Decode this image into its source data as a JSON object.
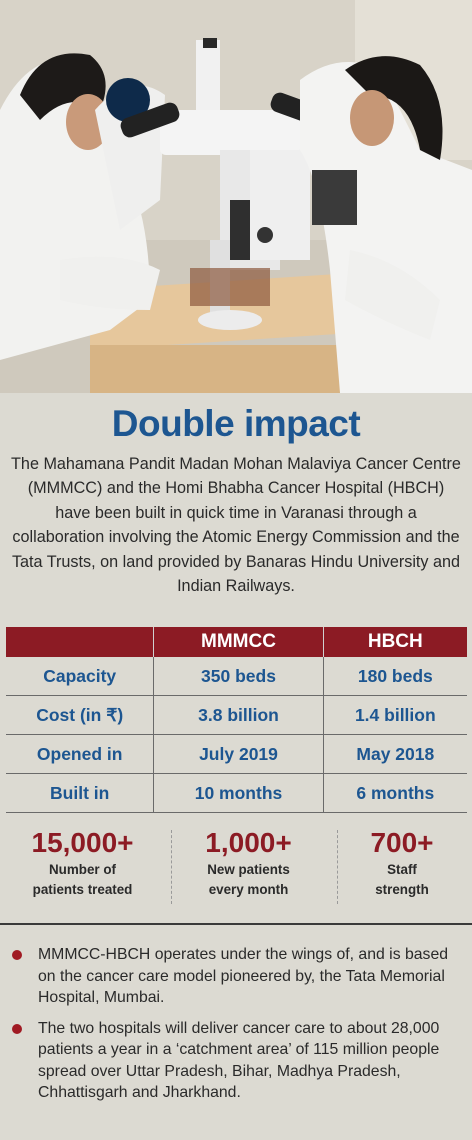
{
  "photo": {
    "alt": "Lab workers using a multi-headed microscope"
  },
  "title": "Double impact",
  "intro": "The Mahamana Pandit Madan Mohan Malaviya Cancer Centre (MMMCC) and the Homi Bhabha Cancer Hospital (HBCH) have been built in quick time in Varanasi through a collaboration involving the Atomic Energy Commission and the Tata Trusts, on land provided by Banaras Hindu University and Indian Railways.",
  "table": {
    "header": [
      "",
      "MMMCC",
      "HBCH"
    ],
    "rows": [
      [
        "Capacity",
        "350 beds",
        "180 beds"
      ],
      [
        "Cost (in ₹)",
        "3.8 billion",
        "1.4 billion"
      ],
      [
        "Opened in",
        "July 2019",
        "May 2018"
      ],
      [
        "Built in",
        "10 months",
        "6 months"
      ]
    ]
  },
  "stats": [
    {
      "number": "15,000+",
      "line1": "Number of",
      "line2": "patients treated"
    },
    {
      "number": "1,000+",
      "line1": "New patients",
      "line2": "every month"
    },
    {
      "number": "700+",
      "line1": "Staff",
      "line2": "strength"
    }
  ],
  "bullets": [
    "MMMCC-HBCH operates under the wings of, and is based on the cancer care model pioneered by, the Tata Memorial Hospital, Mumbai.",
    "The two hospitals will deliver cancer care to about 28,000 patients a year in a ‘catchment area’ of 115 million people spread over Uttar Pradesh, Bihar, Madhya Pradesh, Chhattisgarh and Jharkhand."
  ],
  "colors": {
    "title_blue": "#1d5691",
    "accent_red": "#8c1b24",
    "background": "#dcdad2"
  }
}
